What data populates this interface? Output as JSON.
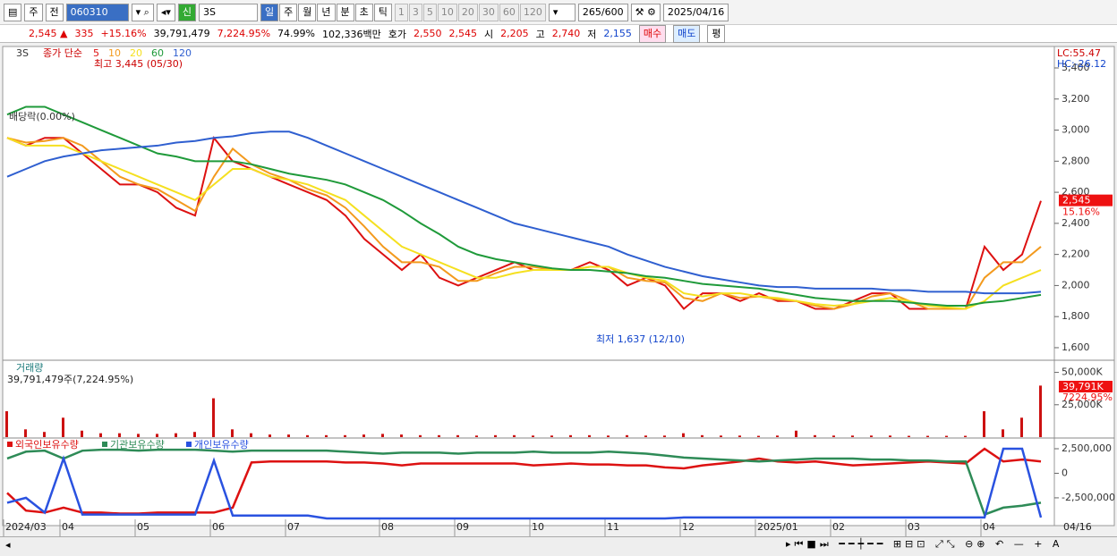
{
  "toolbar": {
    "market": "주",
    "kind": "전",
    "code": "060310",
    "name": "3S",
    "periods": [
      "일",
      "주",
      "월",
      "년",
      "분",
      "초",
      "틱"
    ],
    "intervals": [
      "1",
      "3",
      "5",
      "10",
      "20",
      "30",
      "60",
      "120"
    ],
    "count": "265",
    "max": "/600",
    "date": "2025/04/16"
  },
  "info": {
    "price": "2,545 ▲",
    "change": "335",
    "rate": "+15.16%",
    "volume": "39,791,479",
    "volume_rate": "7,224.95%",
    "ratio": "74.99%",
    "amount": "102,336백만",
    "bid_label": "호가",
    "ask": "2,550",
    "bid": "2,545",
    "open_label": "시",
    "open": "2,205",
    "high_label": "고",
    "high": "2,740",
    "low_label": "저",
    "low": "2,155",
    "buy": "매수",
    "sell": "매도",
    "avg": "평"
  },
  "chart_data": [
    {
      "type": "line",
      "title": "3S",
      "legend_title": "종가 단순",
      "annotations": {
        "high": "최고 3,445 (05/30)",
        "low": "최저 1,637 (12/10)",
        "dividend": "배당락(0.00%)",
        "lc": "LC:55.47",
        "hc": "HC:-26.12",
        "last": "2,545",
        "last_rate": "15.16%"
      },
      "categories": [
        "2024/03",
        null,
        null,
        "04",
        null,
        null,
        null,
        "05",
        null,
        null,
        null,
        "06",
        null,
        null,
        null,
        "07",
        null,
        null,
        null,
        null,
        "08",
        null,
        null,
        null,
        "09",
        null,
        null,
        null,
        "10",
        null,
        null,
        null,
        "11",
        null,
        null,
        null,
        "12",
        null,
        null,
        null,
        "2025/01",
        null,
        null,
        null,
        "02",
        null,
        null,
        null,
        "03",
        null,
        null,
        null,
        "04",
        null,
        null,
        null
      ],
      "end_label": "04/16",
      "ylim": [
        1525,
        3515
      ],
      "yticks": [
        {
          "value": 1600,
          "label": "1,600"
        },
        {
          "value": 1800,
          "label": "1,800"
        },
        {
          "value": 2000,
          "label": "2,000"
        },
        {
          "value": 2200,
          "label": "2,200"
        },
        {
          "value": 2400,
          "label": "2,400"
        },
        {
          "value": 2600,
          "label": "2,600"
        },
        {
          "value": 2800,
          "label": "2,800"
        },
        {
          "value": 3000,
          "label": "3,000"
        },
        {
          "value": 3200,
          "label": "3,200"
        },
        {
          "value": 3400,
          "label": "3,400"
        }
      ],
      "series": [
        {
          "name": "5",
          "color": "#dd1111",
          "values": [
            2950,
            2900,
            2950,
            2950,
            2850,
            2750,
            2650,
            2650,
            2600,
            2500,
            2450,
            2950,
            2800,
            2750,
            2700,
            2650,
            2600,
            2550,
            2450,
            2300,
            2200,
            2100,
            2200,
            2050,
            2000,
            2050,
            2100,
            2150,
            2100,
            2100,
            2100,
            2150,
            2100,
            2000,
            2050,
            2000,
            1850,
            1950,
            1950,
            1900,
            1950,
            1900,
            1900,
            1850,
            1850,
            1900,
            1950,
            1950,
            1850,
            1850,
            1850,
            1850,
            2250,
            2100,
            2200,
            2545
          ]
        },
        {
          "name": "10",
          "color": "#f39a1e",
          "values": [
            2950,
            2920,
            2930,
            2950,
            2900,
            2800,
            2700,
            2650,
            2620,
            2550,
            2480,
            2700,
            2880,
            2780,
            2720,
            2680,
            2620,
            2580,
            2500,
            2380,
            2250,
            2150,
            2150,
            2120,
            2030,
            2030,
            2080,
            2120,
            2120,
            2100,
            2100,
            2120,
            2120,
            2050,
            2030,
            2020,
            1920,
            1900,
            1950,
            1920,
            1930,
            1910,
            1900,
            1870,
            1850,
            1880,
            1930,
            1950,
            1900,
            1850,
            1850,
            1850,
            2050,
            2150,
            2150,
            2250
          ]
        },
        {
          "name": "20",
          "color": "#f5e020",
          "values": [
            2950,
            2900,
            2900,
            2900,
            2850,
            2800,
            2750,
            2700,
            2650,
            2600,
            2550,
            2650,
            2750,
            2750,
            2700,
            2680,
            2650,
            2600,
            2550,
            2450,
            2350,
            2250,
            2200,
            2150,
            2100,
            2050,
            2050,
            2080,
            2100,
            2100,
            2100,
            2120,
            2120,
            2080,
            2050,
            2030,
            1950,
            1930,
            1950,
            1950,
            1930,
            1920,
            1900,
            1880,
            1870,
            1880,
            1900,
            1920,
            1900,
            1870,
            1860,
            1850,
            1900,
            2000,
            2050,
            2100
          ]
        },
        {
          "name": "60",
          "color": "#1f9a3a",
          "values": [
            3100,
            3150,
            3150,
            3100,
            3050,
            3000,
            2950,
            2900,
            2850,
            2830,
            2800,
            2800,
            2800,
            2780,
            2750,
            2720,
            2700,
            2680,
            2650,
            2600,
            2550,
            2480,
            2400,
            2330,
            2250,
            2200,
            2170,
            2150,
            2130,
            2110,
            2100,
            2100,
            2090,
            2080,
            2060,
            2050,
            2030,
            2010,
            2000,
            1990,
            1980,
            1960,
            1940,
            1920,
            1910,
            1900,
            1900,
            1900,
            1890,
            1880,
            1870,
            1870,
            1890,
            1900,
            1920,
            1940
          ]
        },
        {
          "name": "120",
          "color": "#2f5fd0",
          "values": [
            2700,
            2750,
            2800,
            2830,
            2850,
            2870,
            2880,
            2890,
            2900,
            2920,
            2930,
            2950,
            2960,
            2980,
            2990,
            2990,
            2950,
            2900,
            2850,
            2800,
            2750,
            2700,
            2650,
            2600,
            2550,
            2500,
            2450,
            2400,
            2370,
            2340,
            2310,
            2280,
            2250,
            2200,
            2160,
            2120,
            2090,
            2060,
            2040,
            2020,
            2000,
            1990,
            1990,
            1980,
            1980,
            1980,
            1980,
            1970,
            1970,
            1960,
            1960,
            1960,
            1950,
            1950,
            1950,
            1960
          ]
        }
      ]
    },
    {
      "type": "bar",
      "title": "거래량",
      "subtitle": "39,791,479주(7,224.95%)",
      "annotations": {
        "last": "39,791K",
        "last_rate": "7224.95%"
      },
      "color": "#cc1111",
      "ylim": [
        0,
        58000000
      ],
      "yticks": [
        {
          "value": 25000000,
          "label": "25,000K"
        },
        {
          "value": 50000000,
          "label": "50,000K"
        }
      ],
      "values": [
        20000000,
        6000000,
        4000000,
        15000000,
        5000000,
        3000000,
        3000000,
        2500000,
        2500000,
        3000000,
        4000000,
        30000000,
        6000000,
        3000000,
        2000000,
        2000000,
        1500000,
        1500000,
        1500000,
        2000000,
        2500000,
        2000000,
        1500000,
        1500000,
        1500000,
        1200000,
        1500000,
        1500000,
        1200000,
        1200000,
        1500000,
        1500000,
        1200000,
        1500000,
        1200000,
        1200000,
        3000000,
        1500000,
        1200000,
        1200000,
        1000000,
        1200000,
        5000000,
        1500000,
        1200000,
        1200000,
        1200000,
        1200000,
        1000000,
        1000000,
        1000000,
        1000000,
        20000000,
        6000000,
        15000000,
        39791479
      ]
    },
    {
      "type": "line",
      "ylim": [
        -4600000,
        3500000
      ],
      "yticks": [
        {
          "value": -2500000,
          "label": "-2,500,000"
        },
        0,
        {
          "value": 2500000,
          "label": "2,500,000"
        }
      ],
      "series": [
        {
          "name": "외국인보유수량",
          "color": "#dd1111",
          "values": [
            -2000000,
            -3800000,
            -4000000,
            -3500000,
            -4000000,
            -4000000,
            -4100000,
            -4100000,
            -4000000,
            -4000000,
            -4000000,
            -4000000,
            -3500000,
            1100000,
            1200000,
            1200000,
            1200000,
            1200000,
            1100000,
            1100000,
            1000000,
            800000,
            1000000,
            1000000,
            1000000,
            1000000,
            1000000,
            1000000,
            800000,
            900000,
            1000000,
            900000,
            900000,
            800000,
            800000,
            600000,
            500000,
            800000,
            1000000,
            1200000,
            1500000,
            1200000,
            1100000,
            1200000,
            1000000,
            800000,
            900000,
            1000000,
            1100000,
            1200000,
            1100000,
            1000000,
            2500000,
            1200000,
            1400000,
            1200000
          ]
        },
        {
          "name": "기관보유수량",
          "color": "#2e8b57",
          "values": [
            1500000,
            2200000,
            2300000,
            1500000,
            2300000,
            2400000,
            2400000,
            2300000,
            2400000,
            2400000,
            2400000,
            2300000,
            2200000,
            2300000,
            2300000,
            2300000,
            2300000,
            2300000,
            2200000,
            2100000,
            2000000,
            2100000,
            2100000,
            2100000,
            2000000,
            2100000,
            2100000,
            2100000,
            2200000,
            2100000,
            2100000,
            2100000,
            2200000,
            2100000,
            2000000,
            1800000,
            1600000,
            1500000,
            1400000,
            1300000,
            1200000,
            1300000,
            1400000,
            1500000,
            1500000,
            1500000,
            1400000,
            1400000,
            1300000,
            1300000,
            1200000,
            1200000,
            -4200000,
            -3500000,
            -3300000,
            -3000000
          ]
        },
        {
          "name": "개인보유수량",
          "color": "#2a52e0",
          "values": [
            -3000000,
            -2500000,
            -4000000,
            1500000,
            -4200000,
            -4200000,
            -4200000,
            -4200000,
            -4200000,
            -4200000,
            -4200000,
            1300000,
            -4300000,
            -4300000,
            -4300000,
            -4300000,
            -4300000,
            -4600000,
            -4600000,
            -4600000,
            -4600000,
            -4600000,
            -4600000,
            -4600000,
            -4600000,
            -4600000,
            -4600000,
            -4600000,
            -4600000,
            -4600000,
            -4600000,
            -4600000,
            -4600000,
            -4600000,
            -4600000,
            -4600000,
            -4500000,
            -4500000,
            -4500000,
            -4500000,
            -4500000,
            -4500000,
            -4500000,
            -4500000,
            -4500000,
            -4500000,
            -4500000,
            -4500000,
            -4500000,
            -4500000,
            -4500000,
            -4500000,
            -4500000,
            2500000,
            2500000,
            -4500000
          ]
        }
      ]
    }
  ]
}
